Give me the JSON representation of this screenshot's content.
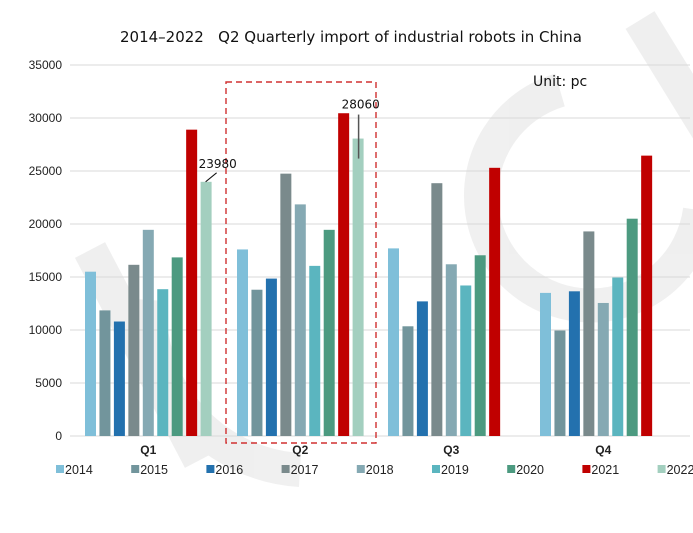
{
  "chart_data": {
    "type": "bar",
    "title": "2014–2022   Q2 Quarterly import of industrial robots in China",
    "unit_label": "Unit: pc",
    "xlabel": "",
    "ylabel": "",
    "ylim": [
      0,
      35000
    ],
    "yticks": [
      0,
      5000,
      10000,
      15000,
      20000,
      25000,
      30000,
      35000
    ],
    "grid": true,
    "legend_position": "bottom",
    "categories": [
      "Q1",
      "Q2",
      "Q3",
      "Q4"
    ],
    "highlighted_category": "Q2",
    "series": [
      {
        "name": "2014",
        "color": "#7fbfd9",
        "values": [
          15500,
          17600,
          17700,
          13500
        ]
      },
      {
        "name": "2015",
        "color": "#72959c",
        "values": [
          11850,
          13800,
          10350,
          9950
        ]
      },
      {
        "name": "2016",
        "color": "#2371ae",
        "values": [
          10800,
          14850,
          12700,
          13650
        ]
      },
      {
        "name": "2017",
        "color": "#7a8a8c",
        "values": [
          16150,
          24750,
          23850,
          19300
        ]
      },
      {
        "name": "2018",
        "color": "#85a9b3",
        "values": [
          19450,
          21850,
          16200,
          12550
        ]
      },
      {
        "name": "2019",
        "color": "#5bb5bf",
        "values": [
          13850,
          16050,
          14200,
          14950
        ]
      },
      {
        "name": "2020",
        "color": "#4c9a80",
        "values": [
          16850,
          19450,
          17050,
          20500
        ]
      },
      {
        "name": "2021",
        "color": "#c00000",
        "values": [
          28900,
          30450,
          25300,
          26450
        ]
      },
      {
        "name": "2022",
        "color": "#a3cfbf",
        "values": [
          23980,
          28060,
          null,
          null
        ]
      }
    ],
    "annotations": [
      {
        "text": "23980",
        "series": "2022",
        "category": "Q1"
      },
      {
        "text": "28060",
        "series": "2022",
        "category": "Q2"
      }
    ]
  }
}
